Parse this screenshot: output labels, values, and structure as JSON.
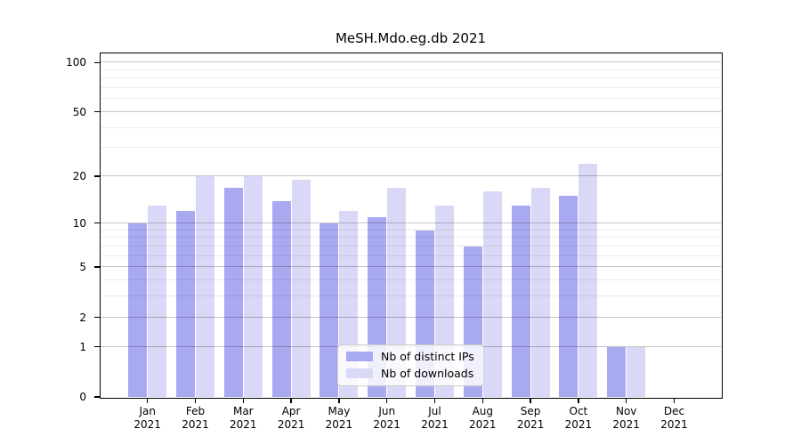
{
  "title": "MeSH.Mdo.eg.db 2021",
  "chart_data": {
    "type": "bar",
    "title": "MeSH.Mdo.eg.db 2021",
    "months": [
      "Jan",
      "Feb",
      "Mar",
      "Apr",
      "May",
      "Jun",
      "Jul",
      "Aug",
      "Sep",
      "Oct",
      "Nov",
      "Dec"
    ],
    "year": "2021",
    "series": [
      {
        "name": "Nb of distinct IPs",
        "color": "#a9a9f1",
        "values": [
          10,
          12,
          17,
          14,
          10,
          11,
          9,
          7,
          13,
          15,
          1,
          0
        ]
      },
      {
        "name": "Nb of downloads",
        "color": "#d9d9f7",
        "values": [
          13,
          20,
          20,
          19,
          12,
          17,
          13,
          16,
          17,
          24,
          1,
          0
        ]
      }
    ],
    "y_axis": {
      "scale": "log1p",
      "tick_labels": [
        0,
        1,
        2,
        5,
        10,
        20,
        50,
        100
      ],
      "minor_gridlines": [
        3,
        4,
        6,
        7,
        8,
        9,
        30,
        40,
        60,
        70,
        80,
        90
      ],
      "max_log1p": 4.74
    },
    "xlabel": "",
    "ylabel": "",
    "grid": true,
    "legend_position": "inside lower-center",
    "colors": {
      "axis": "#000000",
      "major_grid": "#c4c4c4",
      "minor_grid": "#ececec",
      "background": "#ffffff"
    }
  }
}
